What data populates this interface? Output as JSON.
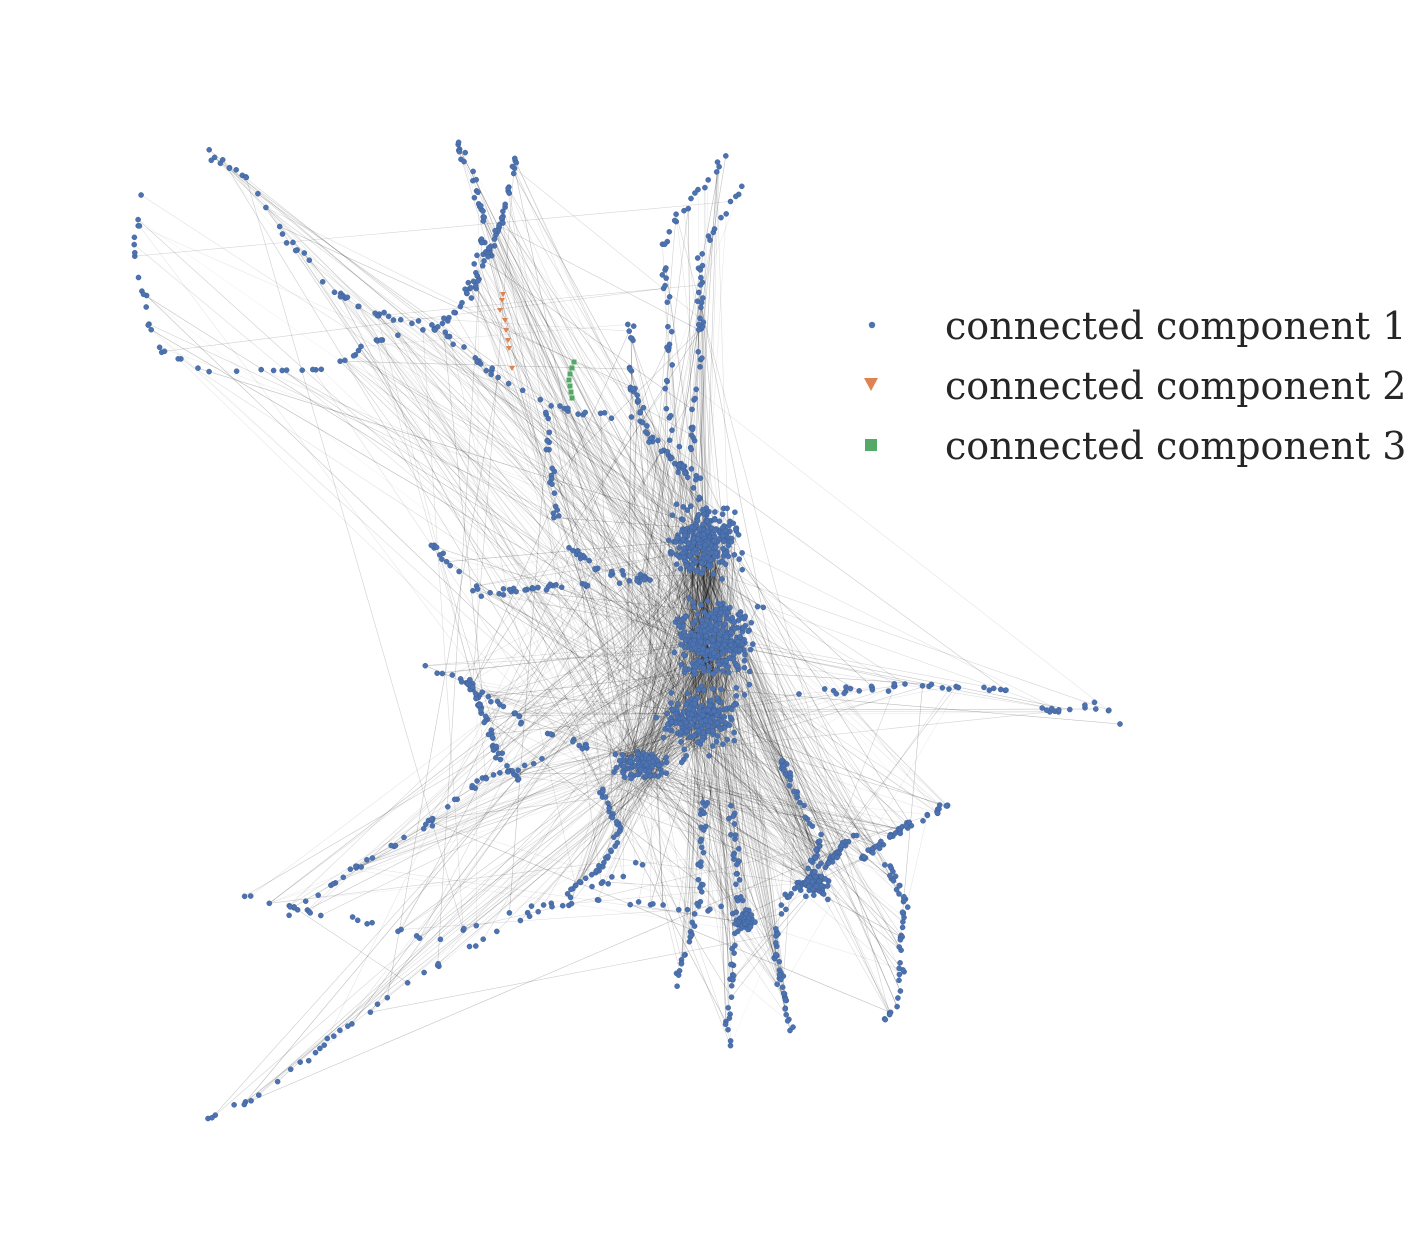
{
  "figure": {
    "kind": "network graph",
    "background": "#ffffff"
  },
  "legend": {
    "placement": "right",
    "items": [
      {
        "label": "connected component 1",
        "marker": "circle",
        "color": "#4c72b0"
      },
      {
        "label": "connected component 2",
        "marker": "triangle-down",
        "color": "#dd8452"
      },
      {
        "label": "connected component 3",
        "marker": "square",
        "color": "#55a868"
      }
    ]
  },
  "edges": {
    "color": "#000000"
  }
}
